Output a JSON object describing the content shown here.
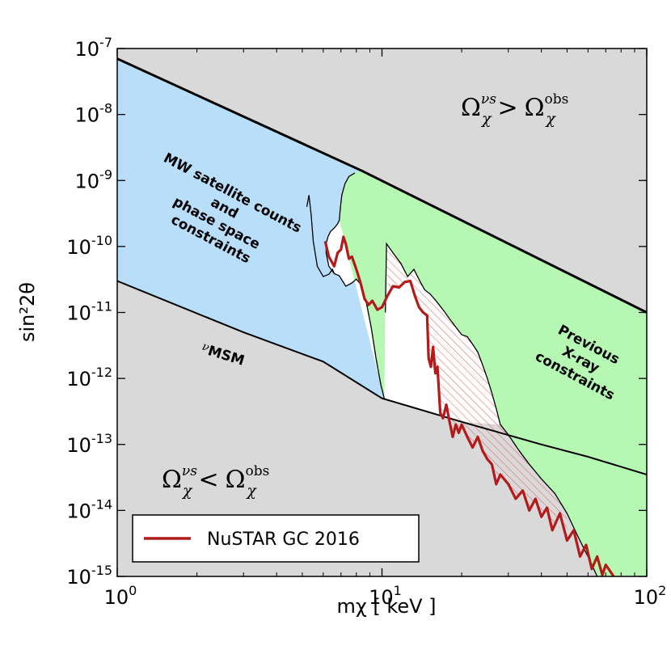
{
  "chart_data": {
    "type": "area",
    "xlabel": "mχ [ keV ]",
    "ylabel": "sin²2θ",
    "x_scale": "log",
    "y_scale": "log",
    "xlim": [
      1,
      100
    ],
    "ylim": [
      1e-15,
      1e-07
    ],
    "x_ticks": [
      {
        "value": 1,
        "base": "10",
        "exp": "0"
      },
      {
        "value": 10,
        "base": "10",
        "exp": "1"
      },
      {
        "value": 100,
        "base": "10",
        "exp": "2"
      }
    ],
    "y_ticks": [
      {
        "value": 1e-07,
        "base": "10",
        "exp": "-7"
      },
      {
        "value": 1e-08,
        "base": "10",
        "exp": "-8"
      },
      {
        "value": 1e-09,
        "base": "10",
        "exp": "-9"
      },
      {
        "value": 1e-10,
        "base": "10",
        "exp": "-10"
      },
      {
        "value": 1e-11,
        "base": "10",
        "exp": "-11"
      },
      {
        "value": 1e-12,
        "base": "10",
        "exp": "-12"
      },
      {
        "value": 1e-13,
        "base": "10",
        "exp": "-13"
      },
      {
        "value": 1e-14,
        "base": "10",
        "exp": "-14"
      },
      {
        "value": 1e-15,
        "base": "10",
        "exp": "-15"
      }
    ],
    "grid": false,
    "legend": {
      "position": "bottom-left",
      "entries": [
        {
          "label": "NuSTAR GC 2016",
          "color": "#b31b1b"
        }
      ]
    },
    "colors": {
      "excluded_gray": "#d9d9d9",
      "mw_blue": "#b8defa",
      "xray_green": "#b5f7b3",
      "nustar_red": "#b31b1b",
      "hatch_red": "#e0595e"
    },
    "annotations": {
      "upper_bound": {
        "base": "Ω",
        "sub": "χ",
        "sup": "νs",
        "rel": ">",
        "rbase": "Ω",
        "rsub": "χ",
        "rsup": "obs"
      },
      "lower_bound": {
        "base": "Ω",
        "sub": "χ",
        "sup": "νs",
        "rel": "<",
        "rbase": "Ω",
        "rsub": "χ",
        "rsup": "obs"
      },
      "mw_label": [
        "MW satellite counts",
        "and",
        "phase space",
        "constraints"
      ],
      "xray_label": [
        "Previous",
        "X-ray",
        "constraints"
      ],
      "numsm_label": {
        "prefix": "ν",
        "main": "MSM"
      }
    },
    "series": [
      {
        "name": "upper abundance bound",
        "points": [
          [
            1,
            7e-08
          ],
          [
            8.4,
            1.4e-09
          ],
          [
            100,
            1e-11
          ]
        ]
      },
      {
        "name": "lower abundance bound (νMSM)",
        "points": [
          [
            1,
            3e-11
          ],
          [
            3,
            5e-12
          ],
          [
            6,
            1.8e-12
          ],
          [
            10,
            5e-13
          ],
          [
            20,
            2.2e-13
          ],
          [
            40,
            1e-13
          ],
          [
            60,
            6.5e-14
          ],
          [
            100,
            3.5e-14
          ]
        ]
      },
      {
        "name": "MW satellite / phase space boundary",
        "points": [
          [
            8.4,
            1.4e-09
          ],
          [
            7.9,
            1.3e-09
          ],
          [
            7.5,
            1.15e-09
          ],
          [
            7.25,
            9e-10
          ],
          [
            7.05,
            6e-10
          ],
          [
            6.95,
            3.6e-10
          ],
          [
            6.9,
            2.5e-10
          ],
          [
            6.8,
            2.2e-10
          ],
          [
            6.6,
            1.9e-10
          ],
          [
            6.4,
            1.7e-10
          ],
          [
            6.25,
            1.4e-10
          ],
          [
            6.15,
            1.1e-10
          ],
          [
            6.15,
            8e-11
          ],
          [
            6.3,
            5e-11
          ],
          [
            6.6,
            3.9e-11
          ],
          [
            6.9,
            3.6e-11
          ],
          [
            7.3,
            2.5e-11
          ],
          [
            7.7,
            2.8e-11
          ],
          [
            8.0,
            3.2e-11
          ],
          [
            8.3,
            2.7e-11
          ],
          [
            8.7,
            1.5e-11
          ],
          [
            9.1,
            6e-12
          ],
          [
            9.5,
            2e-12
          ],
          [
            9.9,
            8e-13
          ],
          [
            10.2,
            5e-13
          ]
        ]
      },
      {
        "name": "phase space wedge",
        "points": [
          [
            5.2,
            4e-10
          ],
          [
            5.3,
            6e-10
          ],
          [
            5.4,
            3e-10
          ],
          [
            5.5,
            1.2e-10
          ],
          [
            5.7,
            5e-11
          ],
          [
            6.0,
            3.5e-11
          ],
          [
            6.3,
            3.8e-11
          ],
          [
            6.5,
            4.5e-11
          ],
          [
            6.6,
            3.9e-11
          ]
        ]
      },
      {
        "name": "previous X-ray boundary",
        "points": [
          [
            10.3,
            1e-11
          ],
          [
            10.4,
            1.1e-10
          ],
          [
            11.0,
            8e-11
          ],
          [
            11.8,
            5.5e-11
          ],
          [
            12.5,
            3.5e-11
          ],
          [
            13.2,
            4.5e-11
          ],
          [
            13.9,
            3e-11
          ],
          [
            14.5,
            2.2e-11
          ],
          [
            15.2,
            1.9e-11
          ],
          [
            16,
            1.5e-11
          ],
          [
            17,
            1.1e-11
          ],
          [
            18,
            8e-12
          ],
          [
            19,
            6e-12
          ],
          [
            20,
            4.6e-12
          ],
          [
            21,
            4.3e-12
          ],
          [
            22,
            3.3e-12
          ],
          [
            23,
            2.5e-12
          ],
          [
            24,
            1.6e-12
          ],
          [
            25,
            1e-12
          ],
          [
            26,
            6e-13
          ],
          [
            27,
            3.5e-13
          ],
          [
            28,
            2e-13
          ],
          [
            30,
            1.4e-13
          ],
          [
            33,
            8e-14
          ],
          [
            36,
            5e-14
          ],
          [
            40,
            3e-14
          ],
          [
            45,
            1.8e-14
          ],
          [
            50,
            9e-15
          ],
          [
            55,
            4e-15
          ],
          [
            60,
            2e-15
          ],
          [
            65,
            1e-15
          ]
        ]
      },
      {
        "name": "NuSTAR GC 2016",
        "points": [
          [
            6.1,
            1.2e-10
          ],
          [
            6.3,
            7e-11
          ],
          [
            6.6,
            5e-11
          ],
          [
            6.8,
            8e-11
          ],
          [
            7.0,
            9e-11
          ],
          [
            7.15,
            1.4e-10
          ],
          [
            7.3,
            1.1e-10
          ],
          [
            7.5,
            6.5e-11
          ],
          [
            7.7,
            7e-11
          ],
          [
            8.0,
            4.5e-11
          ],
          [
            8.3,
            2.8e-11
          ],
          [
            8.6,
            1.6e-11
          ],
          [
            8.9,
            1.3e-11
          ],
          [
            9.2,
            1.5e-11
          ],
          [
            9.6,
            1.1e-11
          ],
          [
            10.0,
            1.2e-11
          ],
          [
            10.5,
            1.8e-11
          ],
          [
            11.0,
            2.5e-11
          ],
          [
            11.6,
            2.4e-11
          ],
          [
            12.2,
            2.9e-11
          ],
          [
            12.8,
            3e-11
          ],
          [
            13.3,
            1.8e-11
          ],
          [
            13.8,
            1.2e-11
          ],
          [
            14.3,
            1e-11
          ],
          [
            14.8,
            9e-12
          ],
          [
            15.0,
            2e-12
          ],
          [
            15.3,
            1.5e-12
          ],
          [
            15.6,
            3e-12
          ],
          [
            15.9,
            1.2e-12
          ],
          [
            16.2,
            1.5e-12
          ],
          [
            16.6,
            3e-13
          ],
          [
            17.0,
            2.5e-13
          ],
          [
            17.5,
            4e-13
          ],
          [
            18.0,
            2.2e-13
          ],
          [
            18.5,
            1.3e-13
          ],
          [
            19.0,
            2e-13
          ],
          [
            19.5,
            1.5e-13
          ],
          [
            20,
            2e-13
          ],
          [
            21,
            1.3e-13
          ],
          [
            22,
            9e-14
          ],
          [
            23,
            1.3e-13
          ],
          [
            24,
            8e-14
          ],
          [
            25,
            6e-14
          ],
          [
            26,
            5e-14
          ],
          [
            27,
            2.5e-14
          ],
          [
            28,
            3.5e-14
          ],
          [
            30,
            2.5e-14
          ],
          [
            32,
            1.5e-14
          ],
          [
            34,
            2e-14
          ],
          [
            36,
            1e-14
          ],
          [
            38,
            1.5e-14
          ],
          [
            40,
            8e-15
          ],
          [
            42,
            1.1e-14
          ],
          [
            44,
            5e-15
          ],
          [
            47,
            9e-15
          ],
          [
            50,
            3.5e-15
          ],
          [
            53,
            5e-15
          ],
          [
            56,
            2e-15
          ],
          [
            59,
            3e-15
          ],
          [
            62,
            1.3e-15
          ],
          [
            65,
            2e-15
          ],
          [
            68,
            1.05e-15
          ],
          [
            70,
            1.5e-15
          ],
          [
            75,
            1e-15
          ]
        ]
      }
    ]
  }
}
